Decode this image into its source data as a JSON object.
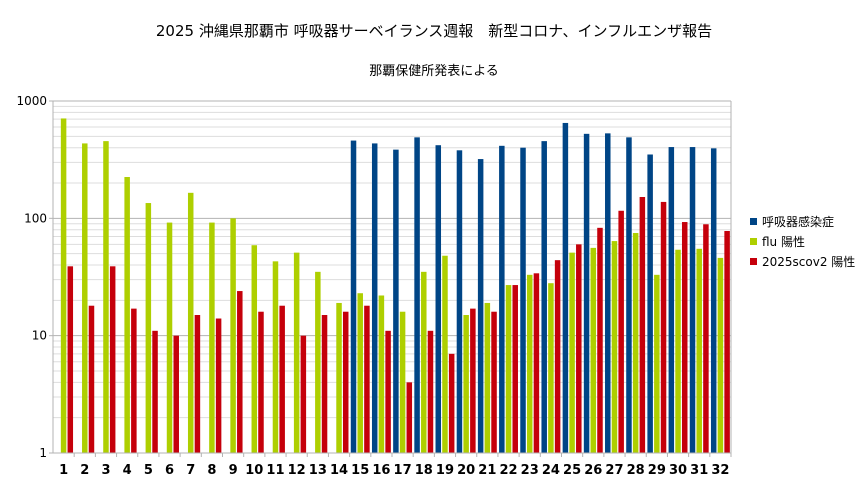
{
  "chart_data": {
    "type": "bar",
    "title": "2025  沖縄県那覇市 呼吸器サーベイランス週報　新型コロナ、インフルエンザ報告",
    "subtitle": "那覇保健所発表による",
    "xlabel": "",
    "ylabel": "",
    "yscale": "log",
    "ylim": [
      1,
      1000
    ],
    "yticks": [
      "1",
      "10",
      "100",
      "1000"
    ],
    "grid": "horizontal",
    "legend_position": "right",
    "categories": [
      "1",
      "2",
      "3",
      "4",
      "5",
      "6",
      "7",
      "8",
      "9",
      "10",
      "11",
      "12",
      "13",
      "14",
      "15",
      "16",
      "17",
      "18",
      "19",
      "20",
      "21",
      "22",
      "23",
      "24",
      "25",
      "26",
      "27",
      "28",
      "29",
      "30",
      "31",
      "32"
    ],
    "series": [
      {
        "name": "呼吸器感染症",
        "color": "#004586",
        "values": [
          null,
          null,
          null,
          null,
          null,
          null,
          null,
          null,
          null,
          null,
          null,
          null,
          null,
          null,
          460,
          435,
          385,
          490,
          420,
          380,
          320,
          415,
          400,
          455,
          650,
          525,
          530,
          490,
          350,
          405,
          405,
          395
        ]
      },
      {
        "name": "flu 陽性",
        "color": "#aecf00",
        "values": [
          710,
          435,
          455,
          225,
          135,
          92,
          165,
          92,
          100,
          59,
          43,
          51,
          35,
          19,
          23,
          22,
          16,
          35,
          48,
          15,
          19,
          27,
          33,
          28,
          51,
          56,
          64,
          75,
          33,
          54,
          55,
          46
        ]
      },
      {
        "name": "2025scov2 陽性",
        "color": "#c5000b",
        "values": [
          39,
          18,
          39,
          17,
          11,
          10,
          15,
          14,
          24,
          16,
          18,
          10,
          15,
          16,
          18,
          11,
          4,
          11,
          7,
          17,
          16,
          27,
          34,
          44,
          60,
          83,
          116,
          152,
          138,
          93,
          89,
          78
        ]
      }
    ]
  }
}
